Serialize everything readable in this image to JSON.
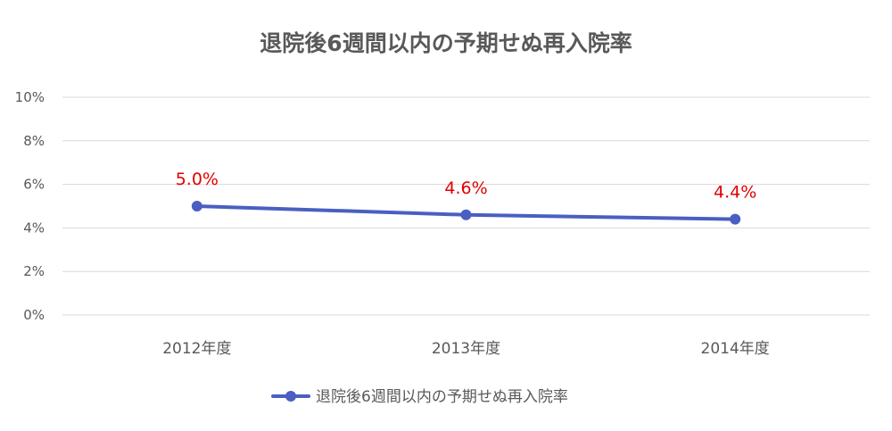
{
  "chart_data": {
    "type": "line",
    "title": "退院後6週間以内の予期せぬ再入院率",
    "xlabel": "",
    "ylabel": "",
    "categories": [
      "2012年度",
      "2013年度",
      "2014年度"
    ],
    "ylim": [
      0,
      10
    ],
    "yticks": [
      0,
      2,
      4,
      6,
      8,
      10
    ],
    "ytick_labels": [
      "0%",
      "2%",
      "4%",
      "6%",
      "8%",
      "10%"
    ],
    "grid": true,
    "legend_position": "bottom",
    "series": [
      {
        "name": "退院後6週間以内の予期せぬ再入院率",
        "values": [
          5.0,
          4.6,
          4.4
        ],
        "data_labels": [
          "5.0%",
          "4.6%",
          "4.4%"
        ],
        "color": "#4a5fc1"
      }
    ],
    "label_color": "#e00000",
    "grid_color": "#d9d9d9",
    "text_color": "#595959"
  }
}
